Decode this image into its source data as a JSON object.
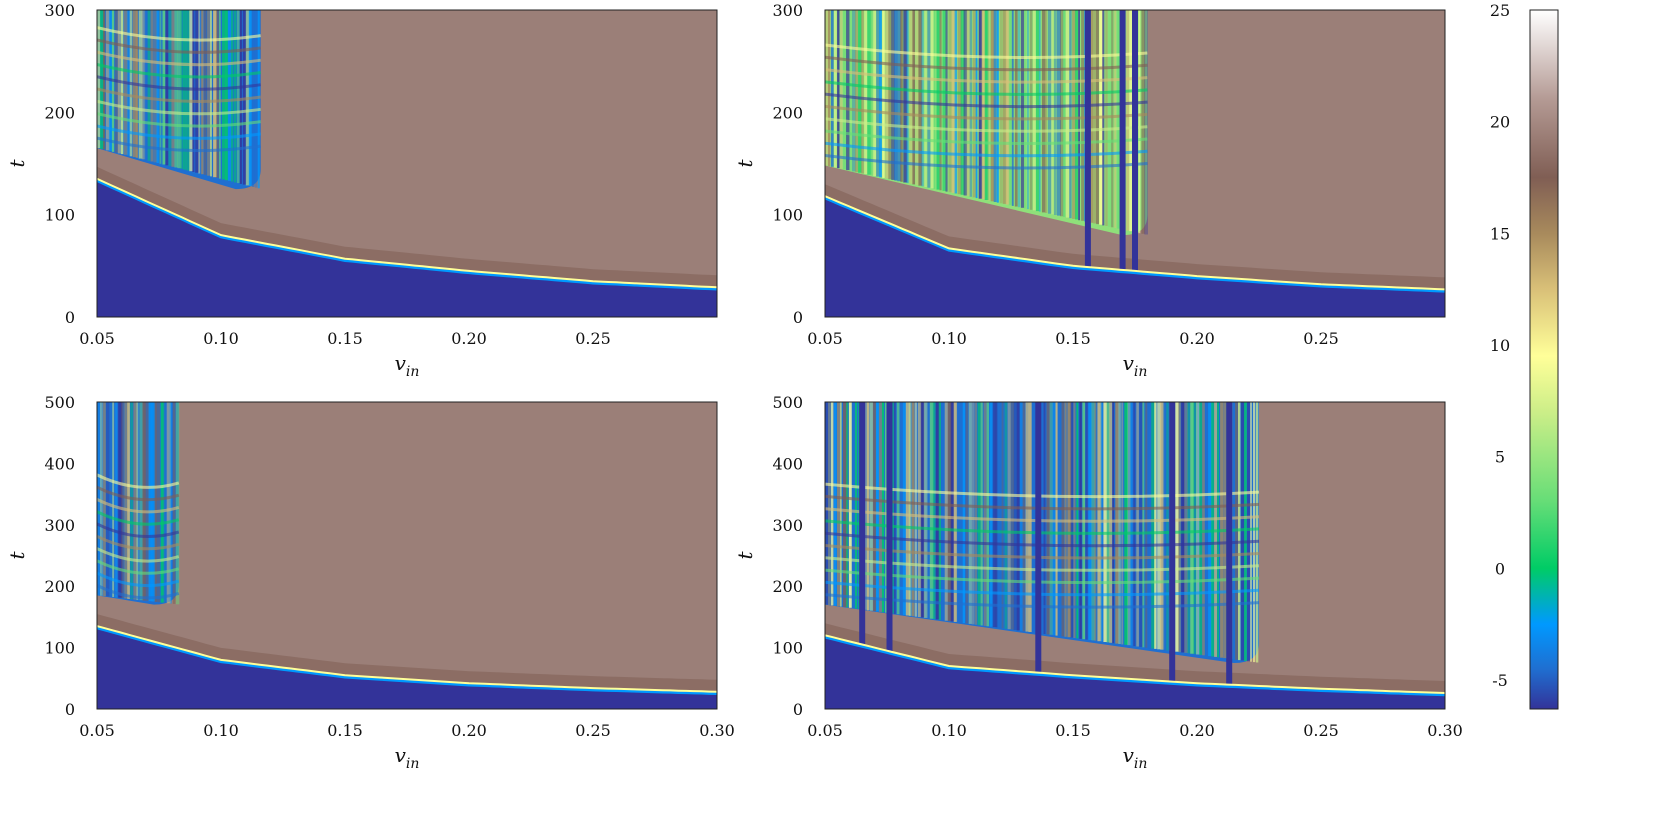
{
  "chart_data": [
    {
      "type": "heatmap",
      "panel": "top-left",
      "xlabel": "v",
      "xlabel_sub": "in",
      "ylabel": "t",
      "xlim": [
        0.05,
        0.3
      ],
      "ylim": [
        0,
        300
      ],
      "xticks": [
        "0.05",
        "0.10",
        "0.15",
        "0.20",
        "0.25"
      ],
      "xtick_values": [
        0.05,
        0.1,
        0.15,
        0.2,
        0.25
      ],
      "yticks": [
        "0",
        "100",
        "200",
        "300"
      ],
      "ytick_values": [
        0,
        100,
        200,
        300
      ],
      "features": {
        "front_curve": {
          "x": [
            0.05,
            0.1,
            0.15,
            0.2,
            0.25,
            0.3
          ],
          "t": [
            135,
            80,
            57,
            45,
            35,
            29
          ]
        },
        "chaotic_region": {
          "x_end": 0.116,
          "t_start_at_x_end": 125
        }
      }
    },
    {
      "type": "heatmap",
      "panel": "top-right",
      "xlabel": "v",
      "xlabel_sub": "in",
      "ylabel": "t",
      "xlim": [
        0.05,
        0.3
      ],
      "ylim": [
        0,
        300
      ],
      "xticks": [
        "0.05",
        "0.10",
        "0.15",
        "0.20",
        "0.25"
      ],
      "xtick_values": [
        0.05,
        0.1,
        0.15,
        0.2,
        0.25
      ],
      "yticks": [
        "0",
        "100",
        "200",
        "300"
      ],
      "ytick_values": [
        0,
        100,
        200,
        300
      ],
      "features": {
        "front_curve": {
          "x": [
            0.05,
            0.1,
            0.15,
            0.2,
            0.25,
            0.3
          ],
          "t": [
            118,
            67,
            50,
            40,
            32,
            27
          ]
        },
        "chaotic_region": {
          "x_end": 0.18,
          "t_start_at_x_end": 80
        },
        "dark_columns": [
          0.156,
          0.17,
          0.175
        ]
      }
    },
    {
      "type": "heatmap",
      "panel": "bottom-left",
      "xlabel": "v",
      "xlabel_sub": "in",
      "ylabel": "t",
      "xlim": [
        0.05,
        0.3
      ],
      "ylim": [
        0,
        500
      ],
      "xticks": [
        "0.05",
        "0.10",
        "0.15",
        "0.20",
        "0.25",
        "0.30"
      ],
      "xtick_values": [
        0.05,
        0.1,
        0.15,
        0.2,
        0.25,
        0.3
      ],
      "yticks": [
        "0",
        "100",
        "200",
        "300",
        "400",
        "500"
      ],
      "ytick_values": [
        0,
        100,
        200,
        300,
        400,
        500
      ],
      "features": {
        "front_curve": {
          "x": [
            0.05,
            0.1,
            0.15,
            0.2,
            0.25,
            0.3
          ],
          "t": [
            135,
            80,
            55,
            42,
            34,
            28
          ]
        },
        "chaotic_region": {
          "x_end": 0.083,
          "t_start_at_x_end": 170
        }
      }
    },
    {
      "type": "heatmap",
      "panel": "bottom-right",
      "xlabel": "v",
      "xlabel_sub": "in",
      "ylabel": "t",
      "xlim": [
        0.05,
        0.3
      ],
      "ylim": [
        0,
        500
      ],
      "xticks": [
        "0.05",
        "0.10",
        "0.15",
        "0.20",
        "0.25",
        "0.30"
      ],
      "xtick_values": [
        0.05,
        0.1,
        0.15,
        0.2,
        0.25,
        0.3
      ],
      "yticks": [
        "0",
        "100",
        "200",
        "300",
        "400",
        "500"
      ],
      "ytick_values": [
        0,
        100,
        200,
        300,
        400,
        500
      ],
      "features": {
        "front_curve": {
          "x": [
            0.05,
            0.1,
            0.15,
            0.2,
            0.25,
            0.3
          ],
          "t": [
            120,
            70,
            55,
            42,
            33,
            26
          ]
        },
        "chaotic_region": {
          "x_end": 0.225,
          "t_start_at_x_end": 75
        },
        "dark_columns": [
          0.065,
          0.076,
          0.136,
          0.19,
          0.213
        ]
      }
    }
  ],
  "colorbar": {
    "ticks": [
      "25",
      "20",
      "15",
      "10",
      "5",
      "0",
      "-5"
    ],
    "tick_values": [
      25,
      20,
      15,
      10,
      5,
      0,
      -5
    ],
    "range": [
      -6.3,
      25
    ],
    "colormap": "terrain",
    "stops": [
      {
        "v": -6.3,
        "color": "#333399"
      },
      {
        "v": -4.5,
        "color": "#1f6fd1"
      },
      {
        "v": -2.5,
        "color": "#0099ff"
      },
      {
        "v": 0.0,
        "color": "#00cc66"
      },
      {
        "v": 3.0,
        "color": "#66dd77"
      },
      {
        "v": 7.0,
        "color": "#ccee88"
      },
      {
        "v": 9.5,
        "color": "#ffff99"
      },
      {
        "v": 12.5,
        "color": "#d9c078"
      },
      {
        "v": 15.0,
        "color": "#a88a5c"
      },
      {
        "v": 17.5,
        "color": "#805e54"
      },
      {
        "v": 21.0,
        "color": "#b49a94"
      },
      {
        "v": 25.0,
        "color": "#ffffff"
      }
    ]
  },
  "colors": {
    "background_state": "#9b7f78",
    "low_state": "#333399",
    "front": "#ffff99"
  }
}
